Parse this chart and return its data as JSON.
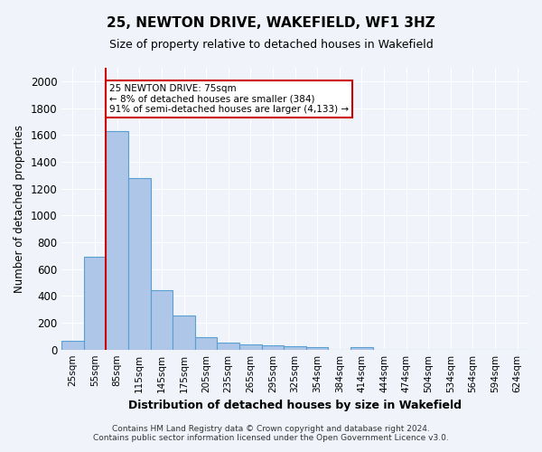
{
  "title": "25, NEWTON DRIVE, WAKEFIELD, WF1 3HZ",
  "subtitle": "Size of property relative to detached houses in Wakefield",
  "xlabel": "Distribution of detached houses by size in Wakefield",
  "ylabel": "Number of detached properties",
  "footer_line1": "Contains HM Land Registry data © Crown copyright and database right 2024.",
  "footer_line2": "Contains public sector information licensed under the Open Government Licence v3.0.",
  "categories": [
    "25sqm",
    "55sqm",
    "85sqm",
    "115sqm",
    "145sqm",
    "175sqm",
    "205sqm",
    "235sqm",
    "265sqm",
    "295sqm",
    "325sqm",
    "354sqm",
    "384sqm",
    "414sqm",
    "444sqm",
    "474sqm",
    "504sqm",
    "534sqm",
    "564sqm",
    "594sqm",
    "624sqm"
  ],
  "values": [
    65,
    690,
    1630,
    1280,
    440,
    255,
    90,
    55,
    40,
    30,
    25,
    15,
    0,
    20,
    0,
    0,
    0,
    0,
    0,
    0,
    0
  ],
  "bar_color": "#aec6e8",
  "bar_edge_color": "#5a9fd4",
  "ylim": [
    0,
    2100
  ],
  "yticks": [
    0,
    200,
    400,
    600,
    800,
    1000,
    1200,
    1400,
    1600,
    1800,
    2000
  ],
  "vline_color": "#cc0000",
  "annotation_text": "25 NEWTON DRIVE: 75sqm\n← 8% of detached houses are smaller (384)\n91% of semi-detached houses are larger (4,133) →",
  "annotation_box_color": "#ffffff",
  "annotation_box_edge_color": "#cc0000",
  "background_color": "#f0f4fa",
  "grid_color": "#ffffff",
  "title_fontsize": 11,
  "subtitle_fontsize": 9
}
